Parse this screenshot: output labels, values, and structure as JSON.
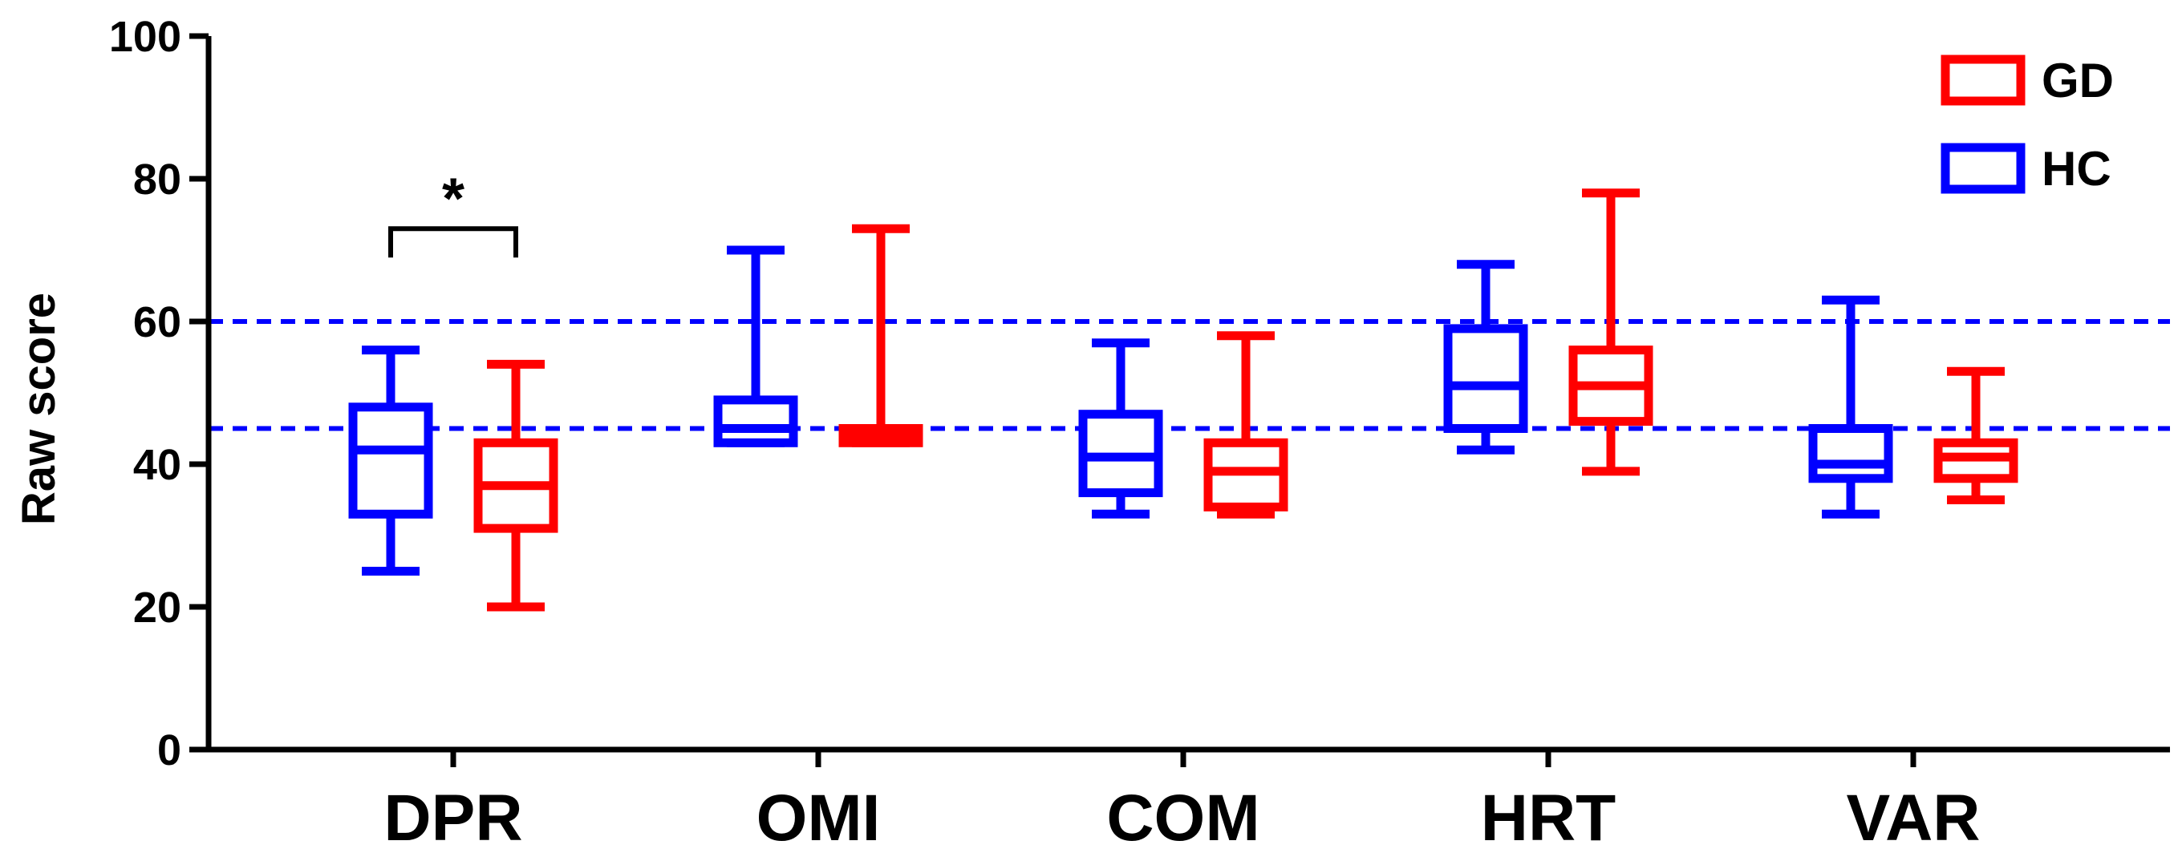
{
  "chart_data": {
    "type": "box",
    "title": "",
    "xlabel": "",
    "ylabel": "Raw score",
    "ylim": [
      0,
      100
    ],
    "yticks": [
      "0",
      "20",
      "40",
      "60",
      "80",
      "100"
    ],
    "categories": [
      "DPR",
      "OMI",
      "COM",
      "HRT",
      "VAR"
    ],
    "series": [
      {
        "name": "HC",
        "color": "#0000ff",
        "boxes": [
          {
            "min": 25,
            "q1": 33,
            "median": 42,
            "q3": 48,
            "max": 56
          },
          {
            "min": 43,
            "q1": 43,
            "median": 45,
            "q3": 49,
            "max": 70
          },
          {
            "min": 33,
            "q1": 36,
            "median": 41,
            "q3": 47,
            "max": 57
          },
          {
            "min": 42,
            "q1": 45,
            "median": 51,
            "q3": 59,
            "max": 68
          },
          {
            "min": 33,
            "q1": 38,
            "median": 40,
            "q3": 45,
            "max": 63
          }
        ]
      },
      {
        "name": "GD",
        "color": "#ff0000",
        "boxes": [
          {
            "min": 20,
            "q1": 31,
            "median": 37,
            "q3": 43,
            "max": 54
          },
          {
            "min": 43,
            "q1": 43,
            "median": 44,
            "q3": 45,
            "max": 73
          },
          {
            "min": 33,
            "q1": 34,
            "median": 39,
            "q3": 43,
            "max": 58
          },
          {
            "min": 39,
            "q1": 46,
            "median": 51,
            "q3": 56,
            "max": 78
          },
          {
            "min": 35,
            "q1": 38,
            "median": 41,
            "q3": 43,
            "max": 53
          }
        ]
      }
    ],
    "reference_lines": [
      60,
      45
    ],
    "reference_line_color": "#0000ff",
    "legend": {
      "position": "top-right",
      "entries": [
        {
          "label": "GD",
          "color": "#ff0000"
        },
        {
          "label": "HC",
          "color": "#0000ff"
        }
      ]
    },
    "annotations": [
      {
        "text": "*",
        "category": "DPR",
        "y": 74,
        "bracket_y": 73
      }
    ],
    "grid": false
  }
}
